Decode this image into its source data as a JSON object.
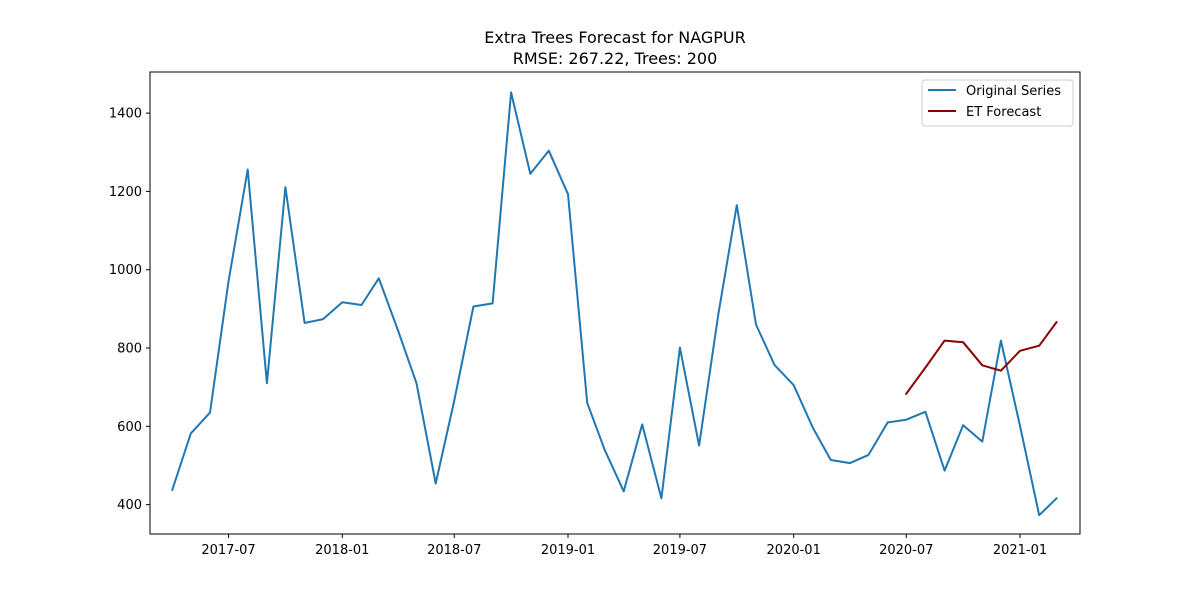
{
  "chart_data": {
    "type": "line",
    "title": "Extra Trees Forecast for NAGPUR",
    "subtitle": "RMSE: 267.22, Trees: 200",
    "xlabel": "",
    "ylabel": "",
    "x_ticks": [
      "2017-07",
      "2018-01",
      "2018-07",
      "2019-01",
      "2019-07",
      "2020-01",
      "2020-07",
      "2021-01"
    ],
    "y_ticks": [
      400,
      600,
      800,
      1000,
      1200,
      1400
    ],
    "xlim": [
      "2017-02-24",
      "2021-04-08"
    ],
    "ylim": [
      325,
      1505
    ],
    "grid": false,
    "legend_position": "top-right",
    "series": [
      {
        "name": "Original Series",
        "color": "#1f77b4",
        "points": [
          [
            "2017-04-01",
            438
          ],
          [
            "2017-05-01",
            582
          ],
          [
            "2017-06-01",
            635
          ],
          [
            "2017-07-01",
            970
          ],
          [
            "2017-08-01",
            1256
          ],
          [
            "2017-09-01",
            710
          ],
          [
            "2017-10-01",
            1211
          ],
          [
            "2017-11-01",
            864
          ],
          [
            "2017-12-01",
            874
          ],
          [
            "2018-01-01",
            917
          ],
          [
            "2018-02-01",
            910
          ],
          [
            "2018-03-01",
            978
          ],
          [
            "2018-04-01",
            845
          ],
          [
            "2018-05-01",
            710
          ],
          [
            "2018-06-01",
            454
          ],
          [
            "2018-07-01",
            665
          ],
          [
            "2018-08-01",
            906
          ],
          [
            "2018-09-01",
            914
          ],
          [
            "2018-10-01",
            1453
          ],
          [
            "2018-11-01",
            1245
          ],
          [
            "2018-12-01",
            1304
          ],
          [
            "2019-01-01",
            1193
          ],
          [
            "2019-02-01",
            660
          ],
          [
            "2019-03-01",
            541
          ],
          [
            "2019-04-01",
            434
          ],
          [
            "2019-05-01",
            605
          ],
          [
            "2019-06-01",
            416
          ],
          [
            "2019-07-01",
            801
          ],
          [
            "2019-08-01",
            551
          ],
          [
            "2019-09-01",
            886
          ],
          [
            "2019-10-01",
            1165
          ],
          [
            "2019-11-01",
            860
          ],
          [
            "2019-12-01",
            757
          ],
          [
            "2020-01-01",
            705
          ],
          [
            "2020-02-01",
            596
          ],
          [
            "2020-03-01",
            514
          ],
          [
            "2020-04-01",
            506
          ],
          [
            "2020-05-01",
            527
          ],
          [
            "2020-06-01",
            610
          ],
          [
            "2020-07-01",
            617
          ],
          [
            "2020-08-01",
            637
          ],
          [
            "2020-09-01",
            487
          ],
          [
            "2020-10-01",
            603
          ],
          [
            "2020-11-01",
            561
          ],
          [
            "2020-12-01",
            819
          ],
          [
            "2021-01-01",
            601
          ],
          [
            "2021-02-01",
            373
          ],
          [
            "2021-03-01",
            416
          ]
        ]
      },
      {
        "name": "ET Forecast",
        "color": "#8b0000",
        "points": [
          [
            "2020-07-01",
            683
          ],
          [
            "2020-08-01",
            750
          ],
          [
            "2020-09-01",
            819
          ],
          [
            "2020-10-01",
            815
          ],
          [
            "2020-11-01",
            756
          ],
          [
            "2020-12-01",
            742
          ],
          [
            "2021-01-01",
            793
          ],
          [
            "2021-02-01",
            806
          ],
          [
            "2021-03-01",
            866
          ]
        ]
      }
    ]
  }
}
